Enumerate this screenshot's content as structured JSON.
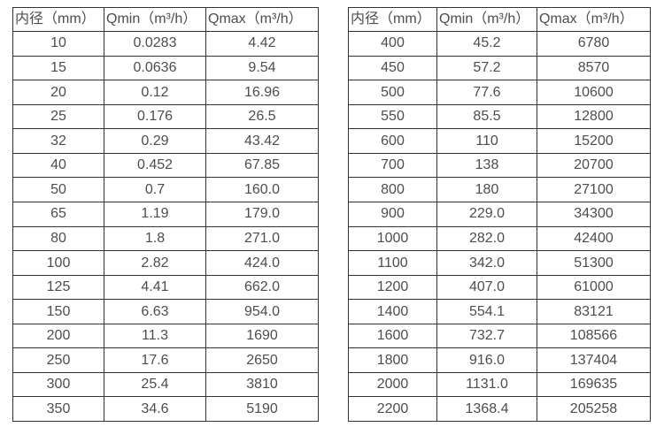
{
  "columns": [
    "内径（mm）",
    "Qmin（m³/h）",
    "Qmax（m³/h）"
  ],
  "left_table": {
    "rows": [
      [
        "10",
        "0.0283",
        "4.42"
      ],
      [
        "15",
        "0.0636",
        "9.54"
      ],
      [
        "20",
        "0.12",
        "16.96"
      ],
      [
        "25",
        "0.176",
        "26.5"
      ],
      [
        "32",
        "0.29",
        "43.42"
      ],
      [
        "40",
        "0.452",
        "67.85"
      ],
      [
        "50",
        "0.7",
        "160.0"
      ],
      [
        "65",
        "1.19",
        "179.0"
      ],
      [
        "80",
        "1.8",
        "271.0"
      ],
      [
        "100",
        "2.82",
        "424.0"
      ],
      [
        "125",
        "4.41",
        "662.0"
      ],
      [
        "150",
        "6.63",
        "954.0"
      ],
      [
        "200",
        "11.3",
        "1690"
      ],
      [
        "250",
        "17.6",
        "2650"
      ],
      [
        "300",
        "25.4",
        "3810"
      ],
      [
        "350",
        "34.6",
        "5190"
      ]
    ]
  },
  "right_table": {
    "rows": [
      [
        "400",
        "45.2",
        "6780"
      ],
      [
        "450",
        "57.2",
        "8570"
      ],
      [
        "500",
        "77.6",
        "10600"
      ],
      [
        "550",
        "85.5",
        "12800"
      ],
      [
        "600",
        "110",
        "15200"
      ],
      [
        "700",
        "138",
        "20700"
      ],
      [
        "800",
        "180",
        "27100"
      ],
      [
        "900",
        "229.0",
        "34300"
      ],
      [
        "1000",
        "282.0",
        "42400"
      ],
      [
        "1100",
        "342.0",
        "51300"
      ],
      [
        "1200",
        "407.0",
        "61000"
      ],
      [
        "1400",
        "554.1",
        "83121"
      ],
      [
        "1600",
        "732.7",
        "108566"
      ],
      [
        "1800",
        "916.0",
        "137404"
      ],
      [
        "2000",
        "1131.0",
        "169635"
      ],
      [
        "2200",
        "1368.4",
        "205258"
      ]
    ]
  }
}
